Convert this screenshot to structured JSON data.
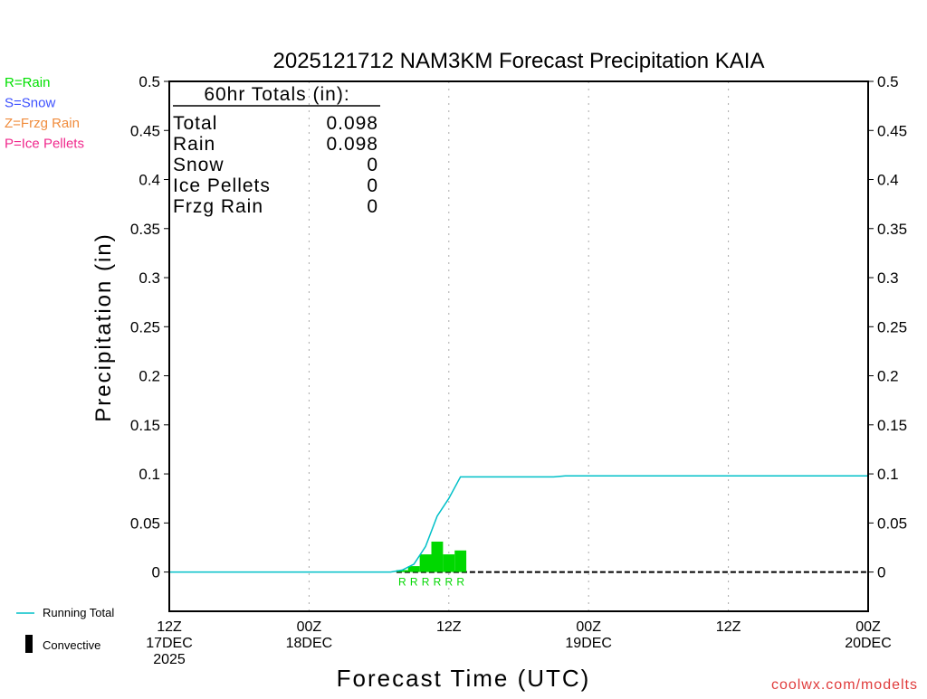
{
  "chart_data": {
    "type": "bar",
    "title": "2025121712 NAM3KM Forecast Precipitation KAIA",
    "xlabel": "Forecast Time (UTC)",
    "ylabel": "Precipitation  (in)",
    "ylim": [
      -0.04,
      0.5
    ],
    "xlim_hours": [
      0,
      60
    ],
    "yticks": [
      0,
      0.05,
      0.1,
      0.15,
      0.2,
      0.25,
      0.3,
      0.35,
      0.4,
      0.45,
      0.5
    ],
    "ytick_labels": [
      "0",
      "0.05",
      "0.1",
      "0.15",
      "0.2",
      "0.25",
      "0.3",
      "0.35",
      "0.4",
      "0.45",
      "0.5"
    ],
    "xticks": [
      {
        "hour": 0,
        "lines": [
          "12Z",
          "17DEC",
          "2025"
        ]
      },
      {
        "hour": 12,
        "lines": [
          "00Z",
          "18DEC"
        ]
      },
      {
        "hour": 24,
        "lines": [
          "12Z"
        ]
      },
      {
        "hour": 36,
        "lines": [
          "00Z",
          "19DEC"
        ]
      },
      {
        "hour": 48,
        "lines": [
          "12Z"
        ]
      },
      {
        "hour": 60,
        "lines": [
          "00Z",
          "20DEC"
        ]
      }
    ],
    "grid": "vertical dotted",
    "bars": {
      "name": "Rain",
      "color": "#00d800",
      "hours": [
        20,
        21,
        22,
        23,
        24,
        25
      ],
      "values": [
        0.002,
        0.006,
        0.018,
        0.031,
        0.018,
        0.022
      ],
      "labels": [
        "R",
        "R",
        "R",
        "R",
        "R",
        "R"
      ]
    },
    "running_total": {
      "name": "Running Total",
      "color": "#00c0c8",
      "hours": [
        0,
        19,
        20,
        21,
        22,
        23,
        24,
        25,
        33,
        34,
        60
      ],
      "values": [
        0,
        0,
        0.002,
        0.008,
        0.026,
        0.057,
        0.075,
        0.097,
        0.097,
        0.098,
        0.098
      ]
    },
    "totals_box": {
      "heading": "60hr Totals (in):",
      "rows": [
        {
          "label": "Total",
          "value": "0.098"
        },
        {
          "label": "Rain",
          "value": "0.098"
        },
        {
          "label": "Snow",
          "value": "0"
        },
        {
          "label": "Ice Pellets",
          "value": "0"
        },
        {
          "label": "Frzg Rain",
          "value": "0"
        }
      ]
    },
    "type_legend": [
      {
        "text": "R=Rain",
        "color": "#00e000"
      },
      {
        "text": "S=Snow",
        "color": "#3c50ff"
      },
      {
        "text": "Z=Frzg Rain",
        "color": "#f08c3c"
      },
      {
        "text": "P=Ice Pellets",
        "color": "#f0288c"
      }
    ],
    "bottom_legend": {
      "running_total": "Running Total",
      "convective": "Convective"
    },
    "credit": "coolwx.com/modelts",
    "credit_color": "#e03c3c"
  }
}
